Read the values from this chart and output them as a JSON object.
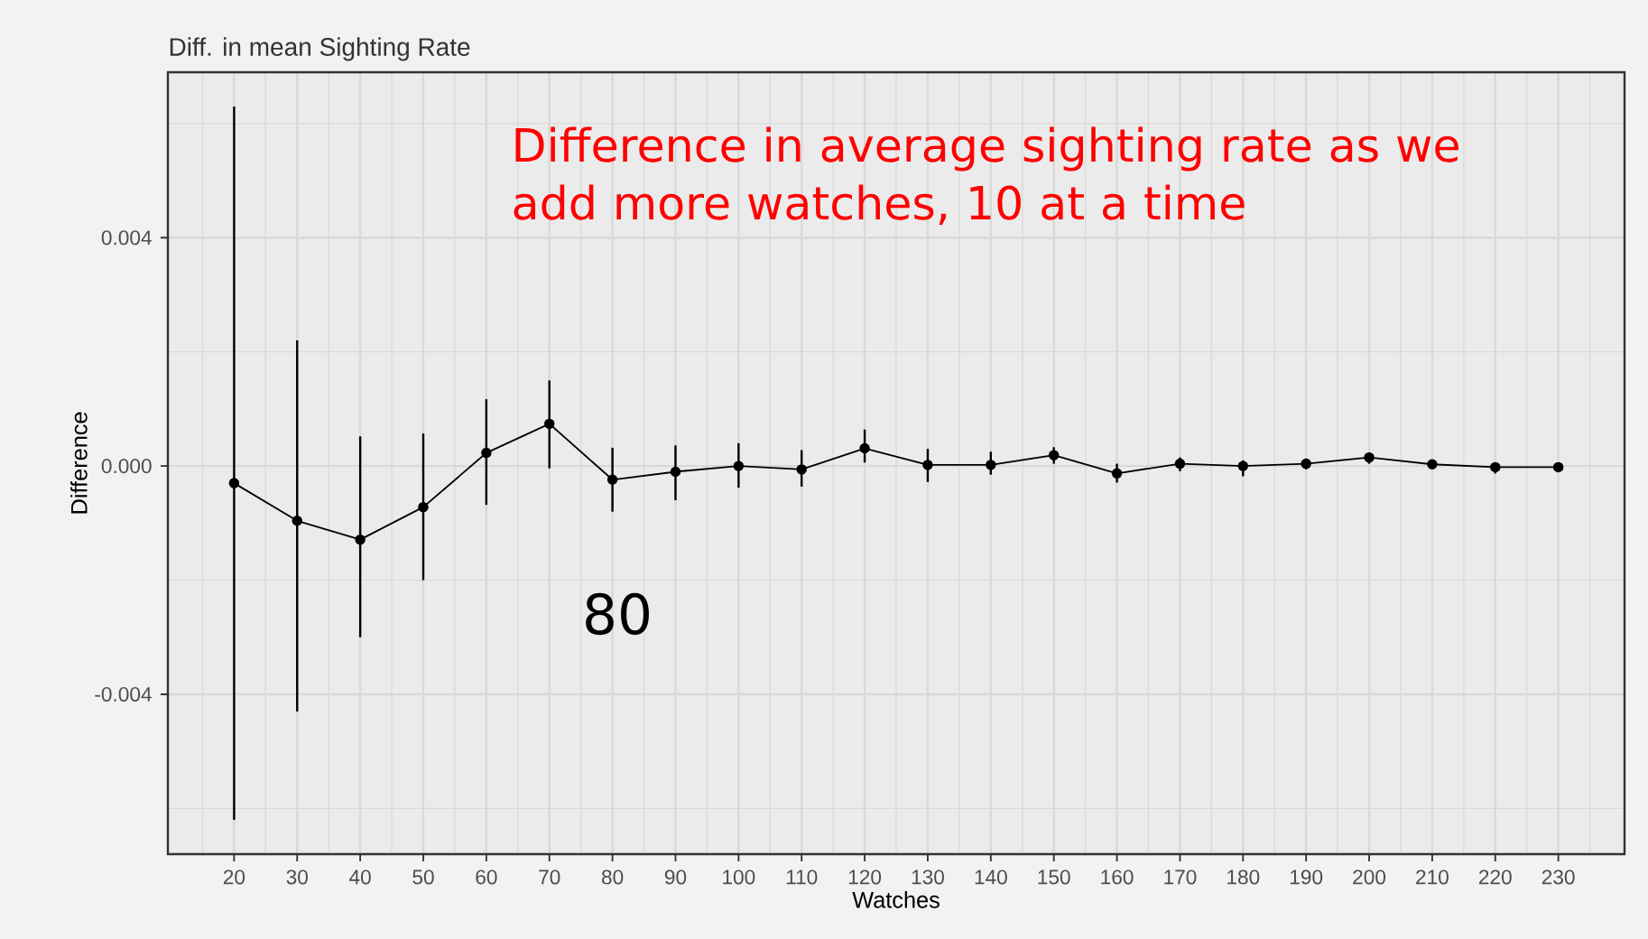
{
  "chart_data": {
    "type": "line",
    "title": "Diff. in mean Sighting Rate",
    "xlabel": "Watches",
    "ylabel": "Difference",
    "x": [
      20,
      30,
      40,
      50,
      60,
      70,
      80,
      90,
      100,
      110,
      120,
      130,
      140,
      150,
      160,
      170,
      180,
      190,
      200,
      210,
      220,
      230
    ],
    "series": [
      {
        "color": "#000000",
        "values": [
          -0.0003,
          -0.00096,
          -0.00129,
          -0.00072,
          0.00023,
          0.00074,
          -0.00024,
          -0.0001,
          0.0,
          -6e-05,
          0.00031,
          2e-05,
          2e-05,
          0.00019,
          -0.00013,
          4e-05,
          0.0,
          4e-05,
          0.00015,
          3e-05,
          -2e-05,
          -2e-05
        ],
        "errors": [
          [
            -0.0062,
            0.0063
          ],
          [
            -0.0043,
            0.0022
          ],
          [
            -0.003,
            0.00052
          ],
          [
            -0.002,
            0.00057
          ],
          [
            -0.00068,
            0.00117
          ],
          [
            -4e-05,
            0.0015
          ],
          [
            -0.0008,
            0.00032
          ],
          [
            -0.0006,
            0.00036
          ],
          [
            -0.00038,
            0.0004
          ],
          [
            -0.00036,
            0.00028
          ],
          [
            6e-05,
            0.00064
          ],
          [
            -0.00028,
            0.0003
          ],
          [
            -0.00015,
            0.00025
          ],
          [
            4e-05,
            0.00033
          ],
          [
            -0.00029,
            4e-05
          ],
          [
            -9e-05,
            0.00015
          ],
          [
            -0.00018,
            0.0001
          ],
          [
            -6e-05,
            0.00013
          ],
          [
            4e-05,
            0.00023
          ],
          [
            -4e-05,
            0.0001
          ],
          [
            -0.00013,
            2e-05
          ],
          null
        ]
      }
    ],
    "xlim": [
      9.5,
      240.5
    ],
    "ylim": [
      -0.0068,
      0.0069
    ],
    "xticks": [
      20,
      30,
      40,
      50,
      60,
      70,
      80,
      90,
      100,
      110,
      120,
      130,
      140,
      150,
      160,
      170,
      180,
      190,
      200,
      210,
      220,
      230
    ],
    "yticks": [
      -0.004,
      {
        "value": 0,
        "label": "0.000"
      },
      0.004
    ],
    "grid": true,
    "marker": "circle",
    "line_style": "solid",
    "annotations": [
      "Difference in average sighting rate as we add more watches, 10 at a time",
      "80"
    ]
  }
}
